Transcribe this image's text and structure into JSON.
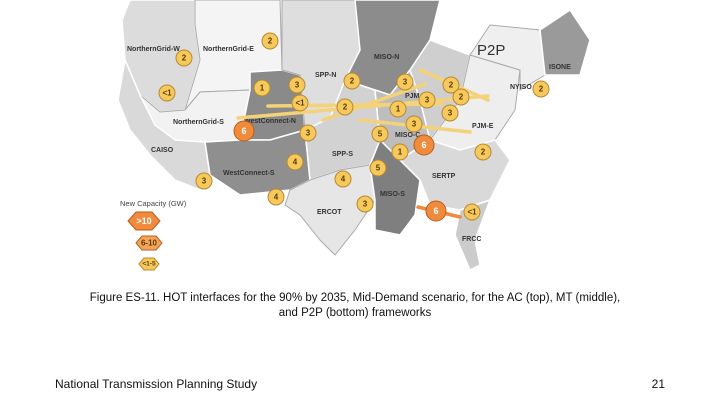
{
  "map": {
    "panel_title": "P2P",
    "regions": [
      "NorthernGrid-W",
      "NorthernGrid-E",
      "NorthernGrid-S",
      "CAISO",
      "WestConnect-N",
      "WestConnect-S",
      "SPP-N",
      "SPP-S",
      "ERCOT",
      "MISO-N",
      "MISO-C",
      "MISO-S",
      "PJM-W",
      "PJM-E",
      "NYISO",
      "ISONE",
      "SERTP",
      "FRCC"
    ],
    "interface_values": [
      "2",
      "2",
      "1",
      "3",
      "<1",
      "2",
      "2",
      "3",
      "3",
      "2",
      "1",
      "3",
      "2",
      "<1",
      "2",
      "6",
      "3",
      "3",
      "5",
      "6",
      "1",
      "2",
      "4",
      "5",
      "4",
      "3",
      "4",
      "3",
      "<1",
      "6"
    ],
    "legend": {
      "title": "New Capacity (GW)",
      "items": [
        ">10",
        "6-10",
        "<1-5"
      ]
    },
    "colors": {
      "accent_orange": "#f08a3c",
      "badge_yellow": "#f6c95e",
      "arrow_yellow": "#f4d27a"
    }
  },
  "caption": {
    "line1": "Figure ES-11. HOT interfaces for the 90% by 2035, Mid-Demand scenario, for the AC (top), MT (middle),",
    "line2": "and P2P (bottom) frameworks"
  },
  "footer": {
    "left": "National Transmission Planning Study",
    "page_number": "21"
  }
}
